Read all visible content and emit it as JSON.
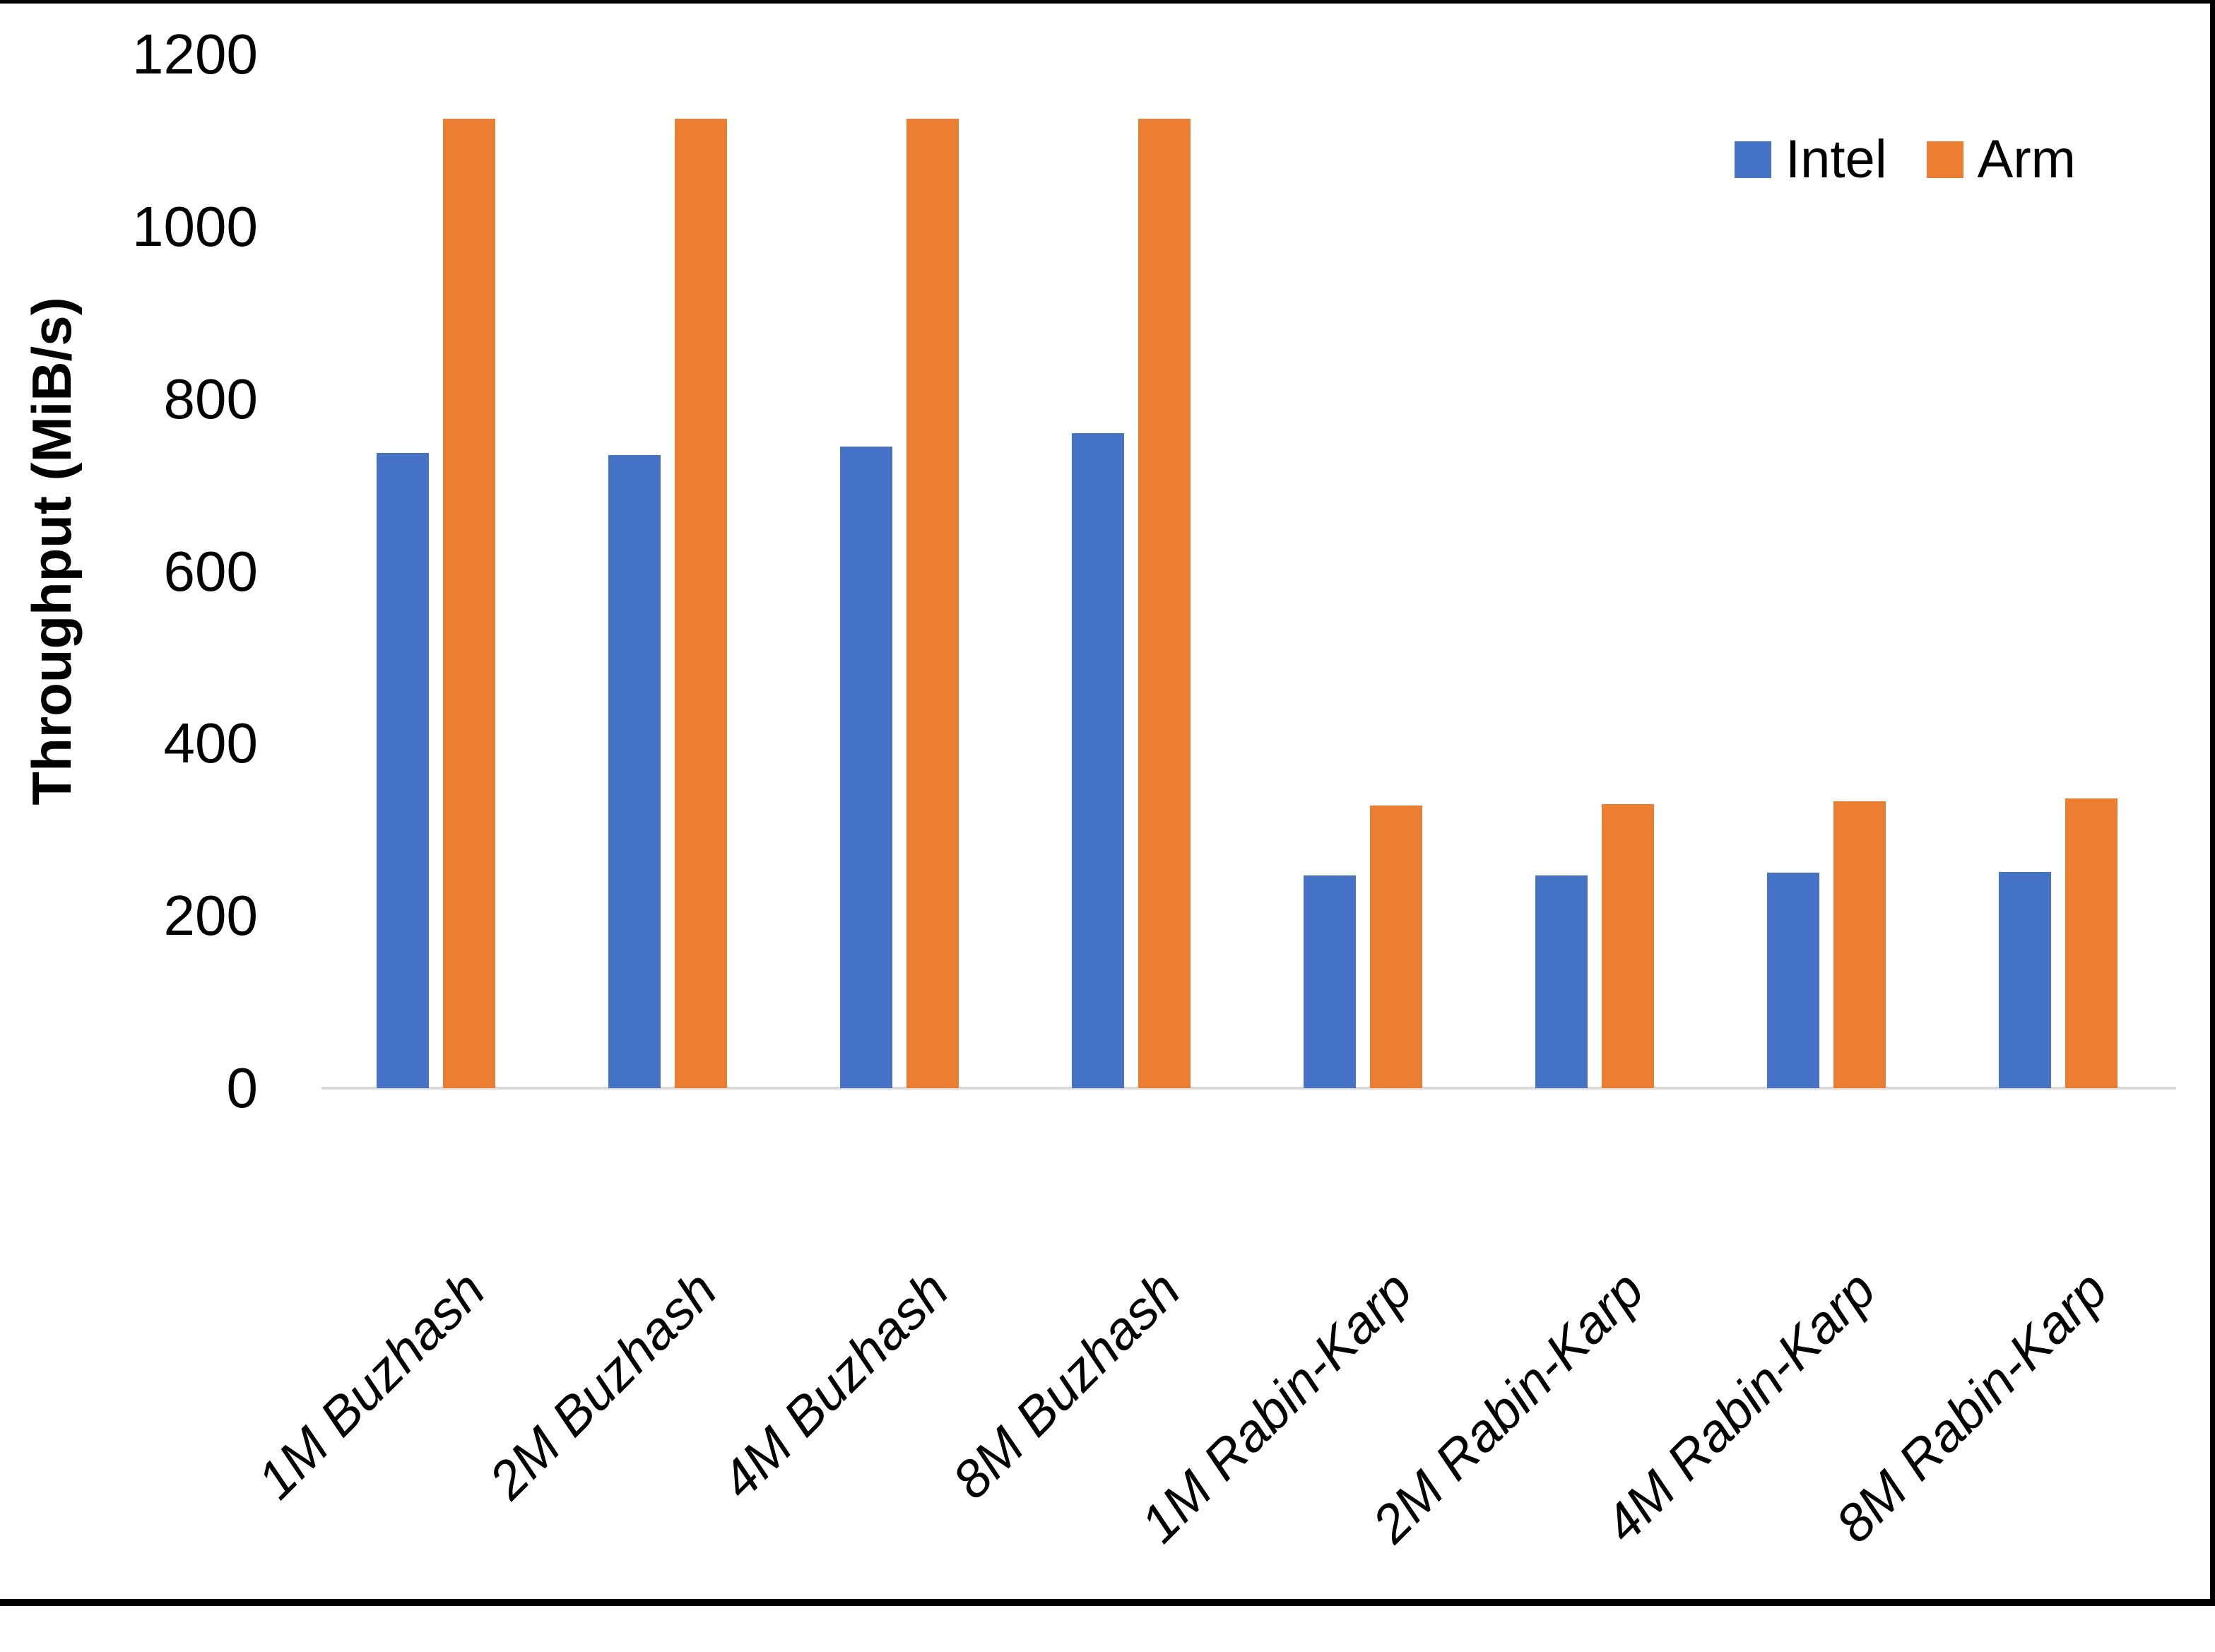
{
  "chart_data": {
    "type": "bar",
    "categories": [
      "1M Buzhash",
      "2M Buzhash",
      "4M Buzhash",
      "8M Buzhash",
      "1M Rabin-Karp",
      "2M Rabin-Karp",
      "4M Rabin-Karp",
      "8M Rabin-Karp"
    ],
    "series": [
      {
        "name": "Intel",
        "color": "#4472C4",
        "values": [
          737,
          735,
          745,
          760,
          247,
          247,
          250,
          251
        ]
      },
      {
        "name": "Arm",
        "color": "#ED7D31",
        "values": [
          1125,
          1125,
          1125,
          1125,
          328,
          330,
          333,
          336
        ]
      }
    ],
    "title": "",
    "xlabel": "",
    "ylabel": "Throughput (MiB/s)",
    "ylim": [
      0,
      1200
    ],
    "yticks": [
      0,
      200,
      400,
      600,
      800,
      1000,
      1200
    ],
    "grid": false,
    "legend_position": "top-right",
    "axis_line_color": "#D9D9D9",
    "text_color": "#000000",
    "background_color": "#FFFFFF"
  }
}
